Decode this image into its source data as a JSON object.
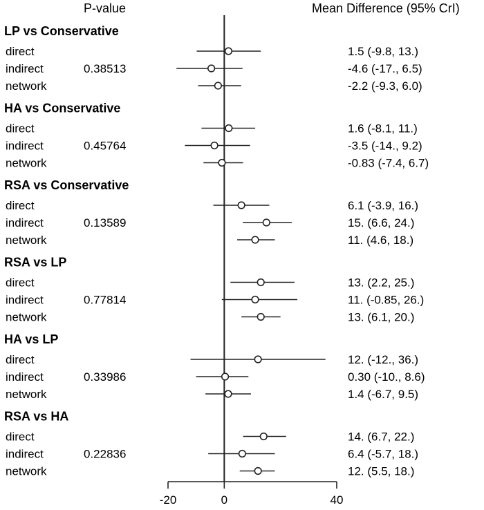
{
  "chart_data": {
    "type": "forest",
    "pvalue_header": "P-value",
    "estimate_header": "Mean Difference (95% CrI)",
    "xlim": [
      -20,
      40
    ],
    "xticks": [
      -20,
      0,
      40
    ],
    "reference_line": 0,
    "groups": [
      {
        "name": "LP vs Conservative",
        "pvalue": "0.38513",
        "rows": [
          {
            "label": "direct",
            "mean": 1.5,
            "lo": -9.8,
            "hi": 13.0,
            "text": "1.5 (-9.8, 13.)"
          },
          {
            "label": "indirect",
            "mean": -4.6,
            "lo": -17.0,
            "hi": 6.5,
            "text": "-4.6 (-17., 6.5)"
          },
          {
            "label": "network",
            "mean": -2.2,
            "lo": -9.3,
            "hi": 6.0,
            "text": "-2.2 (-9.3, 6.0)"
          }
        ]
      },
      {
        "name": "HA vs Conservative",
        "pvalue": "0.45764",
        "rows": [
          {
            "label": "direct",
            "mean": 1.6,
            "lo": -8.1,
            "hi": 11.0,
            "text": "1.6 (-8.1, 11.)"
          },
          {
            "label": "indirect",
            "mean": -3.5,
            "lo": -14.0,
            "hi": 9.2,
            "text": "-3.5 (-14., 9.2)"
          },
          {
            "label": "network",
            "mean": -0.83,
            "lo": -7.4,
            "hi": 6.7,
            "text": "-0.83 (-7.4, 6.7)"
          }
        ]
      },
      {
        "name": "RSA vs Conservative",
        "pvalue": "0.13589",
        "rows": [
          {
            "label": "direct",
            "mean": 6.1,
            "lo": -3.9,
            "hi": 16.0,
            "text": "6.1 (-3.9, 16.)"
          },
          {
            "label": "indirect",
            "mean": 15.0,
            "lo": 6.6,
            "hi": 24.0,
            "text": "15. (6.6, 24.)"
          },
          {
            "label": "network",
            "mean": 11.0,
            "lo": 4.6,
            "hi": 18.0,
            "text": "11. (4.6, 18.)"
          }
        ]
      },
      {
        "name": "RSA vs LP",
        "pvalue": "0.77814",
        "rows": [
          {
            "label": "direct",
            "mean": 13.0,
            "lo": 2.2,
            "hi": 25.0,
            "text": "13. (2.2, 25.)"
          },
          {
            "label": "indirect",
            "mean": 11.0,
            "lo": -0.85,
            "hi": 26.0,
            "text": "11. (-0.85, 26.)"
          },
          {
            "label": "network",
            "mean": 13.0,
            "lo": 6.1,
            "hi": 20.0,
            "text": "13. (6.1, 20.)"
          }
        ]
      },
      {
        "name": "HA vs LP",
        "pvalue": "0.33986",
        "rows": [
          {
            "label": "direct",
            "mean": 12.0,
            "lo": -12.0,
            "hi": 36.0,
            "text": "12. (-12., 36.)"
          },
          {
            "label": "indirect",
            "mean": 0.3,
            "lo": -10.0,
            "hi": 8.6,
            "text": "0.30 (-10., 8.6)"
          },
          {
            "label": "network",
            "mean": 1.4,
            "lo": -6.7,
            "hi": 9.5,
            "text": "1.4 (-6.7, 9.5)"
          }
        ]
      },
      {
        "name": "RSA vs HA",
        "pvalue": "0.22836",
        "rows": [
          {
            "label": "direct",
            "mean": 14.0,
            "lo": 6.7,
            "hi": 22.0,
            "text": "14. (6.7, 22.)"
          },
          {
            "label": "indirect",
            "mean": 6.4,
            "lo": -5.7,
            "hi": 18.0,
            "text": "6.4 (-5.7, 18.)"
          },
          {
            "label": "network",
            "mean": 12.0,
            "lo": 5.5,
            "hi": 18.0,
            "text": "12. (5.5, 18.)"
          }
        ]
      }
    ]
  }
}
